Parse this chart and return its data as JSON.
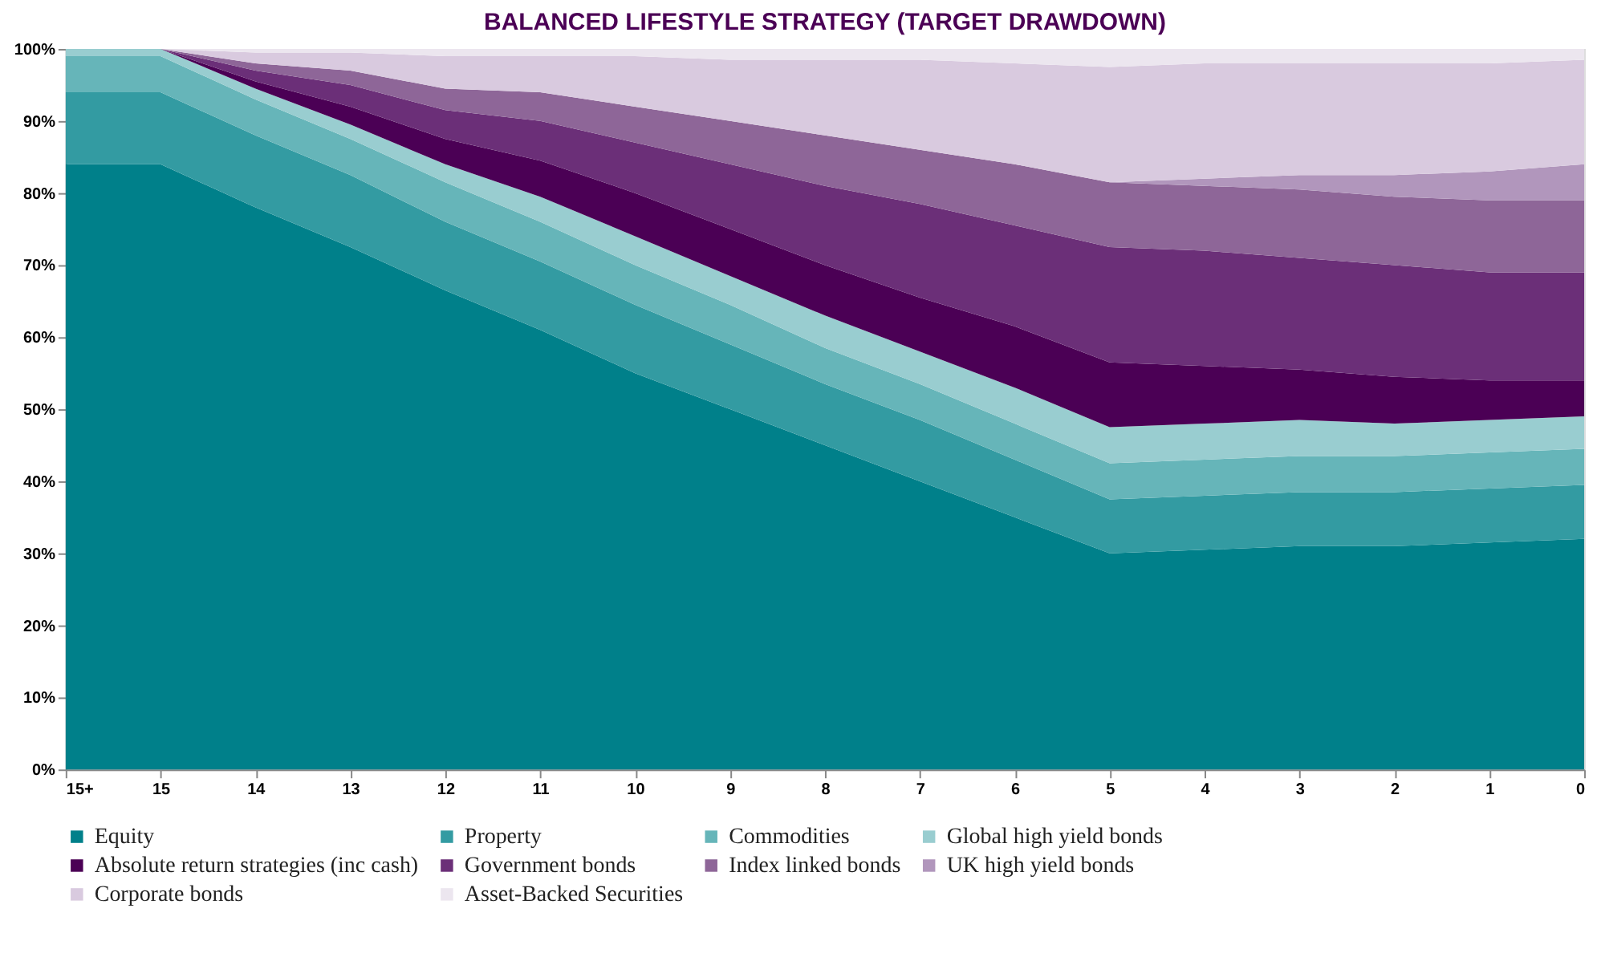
{
  "chart_data": {
    "type": "area",
    "stacked": true,
    "title": "BALANCED LIFESTYLE STRATEGY (TARGET DRAWDOWN)",
    "categories": [
      "15+",
      "15",
      "14",
      "13",
      "12",
      "11",
      "10",
      "9",
      "8",
      "7",
      "6",
      "5",
      "4",
      "3",
      "2",
      "1",
      "0"
    ],
    "ylim": [
      0,
      100
    ],
    "yticks": [
      {
        "value": 0,
        "label": "0%"
      },
      {
        "value": 10,
        "label": "10%"
      },
      {
        "value": 20,
        "label": "20%"
      },
      {
        "value": 30,
        "label": "30%"
      },
      {
        "value": 40,
        "label": "40%"
      },
      {
        "value": 50,
        "label": "50%"
      },
      {
        "value": 60,
        "label": "60%"
      },
      {
        "value": 70,
        "label": "70%"
      },
      {
        "value": 80,
        "label": "80%"
      },
      {
        "value": 90,
        "label": "90%"
      },
      {
        "value": 100,
        "label": "100%"
      }
    ],
    "grid": false,
    "legend": "bottom",
    "series": [
      {
        "name": "Equity",
        "color": "#00808a",
        "values": [
          84,
          84,
          78,
          72.5,
          66.5,
          61,
          55,
          50,
          45,
          40,
          35,
          30,
          30.5,
          31,
          31,
          31.5,
          32
        ]
      },
      {
        "name": "Property",
        "color": "#339ba2",
        "values": [
          10,
          10,
          10,
          10,
          9.5,
          9.5,
          9.5,
          9,
          8.5,
          8.5,
          8,
          7.5,
          7.5,
          7.5,
          7.5,
          7.5,
          7.5
        ]
      },
      {
        "name": "Commodities",
        "color": "#66b5b9",
        "values": [
          5,
          5,
          5,
          5,
          5.5,
          5.5,
          5.5,
          5.5,
          5,
          5,
          5,
          5,
          5,
          5,
          5,
          5,
          5
        ]
      },
      {
        "name": "Global high yield bonds",
        "color": "#99cdd0",
        "values": [
          1,
          1,
          1.5,
          2,
          2.5,
          3.5,
          4,
          4,
          4.5,
          4.5,
          5,
          5,
          5,
          5,
          4.5,
          4.5,
          4.5
        ]
      },
      {
        "name": "Absolute return strategies (inc cash)",
        "color": "#4b0055",
        "values": [
          0,
          0,
          1,
          2.5,
          3.5,
          5,
          6,
          6.5,
          7,
          7.5,
          8.5,
          9,
          8,
          7,
          6.5,
          5.5,
          5
        ]
      },
      {
        "name": "Government bonds",
        "color": "#6b2f78",
        "values": [
          0,
          0,
          1.5,
          3,
          4,
          5.5,
          7,
          9,
          11,
          13,
          14,
          16,
          16,
          15.5,
          15.5,
          15,
          15
        ]
      },
      {
        "name": "Index linked bonds",
        "color": "#8e6698",
        "values": [
          0,
          0,
          1,
          2,
          3,
          4,
          5,
          6,
          7,
          7.5,
          8.5,
          9,
          9,
          9.5,
          9.5,
          10,
          10
        ]
      },
      {
        "name": "UK high yield bonds",
        "color": "#b196bc",
        "values": [
          0,
          0,
          0,
          0,
          0,
          0,
          0,
          0,
          0,
          0,
          0,
          0,
          1,
          2,
          3,
          4,
          5
        ]
      },
      {
        "name": "Corporate bonds",
        "color": "#d9cadf",
        "values": [
          0,
          0,
          1.5,
          2.5,
          4.5,
          5,
          7,
          8.5,
          10.5,
          12.5,
          14,
          16,
          16,
          15.5,
          15.5,
          15,
          14.5
        ]
      },
      {
        "name": "Asset-Backed Securities",
        "color": "#ece6ef",
        "values": [
          0,
          0,
          0.5,
          0.5,
          1,
          1,
          1,
          1.5,
          1.5,
          1.5,
          2,
          2.5,
          2,
          2,
          2,
          2,
          1.5
        ]
      }
    ]
  }
}
